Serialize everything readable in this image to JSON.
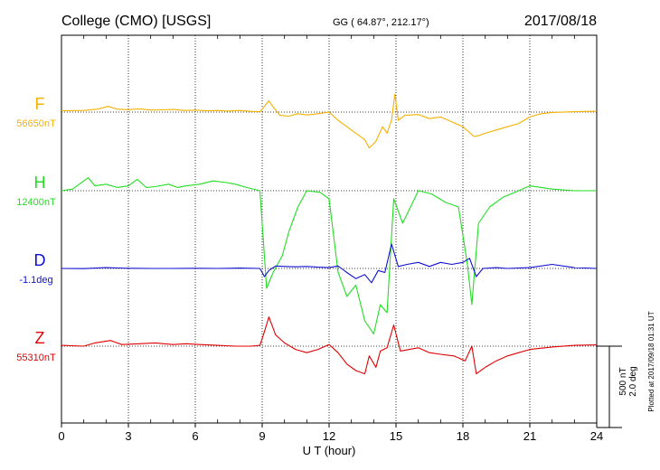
{
  "chart_data": {
    "type": "line",
    "title": "College (CMO)  [USGS]",
    "coords": "GG ( 64.87°, 212.17°)",
    "date": "2017/08/18",
    "xlabel": "U T (hour)",
    "xlim": [
      0,
      24
    ],
    "xticks": [
      0,
      3,
      6,
      9,
      12,
      15,
      18,
      21,
      24
    ],
    "tick_labels": [
      "0",
      "3",
      "6",
      "9",
      "12",
      "15",
      "18",
      "21",
      "24"
    ],
    "grid": true,
    "scale_note": "500 nT\n2.0 deg",
    "scale_nt": 500,
    "scale_deg": 2.0,
    "plotted_note": "Plotted at 2017/09/18 01:31 UT",
    "colors": {
      "F": "#f5b000",
      "H": "#22dd22",
      "D": "#1010d0",
      "Z": "#e00000"
    },
    "series": [
      {
        "name": "F",
        "baseline_label": "56650nT",
        "unit": "nT",
        "baseline": 56650,
        "points": [
          [
            0,
            56658
          ],
          [
            1,
            56660
          ],
          [
            1.6,
            56668
          ],
          [
            2.1,
            56685
          ],
          [
            2.5,
            56668
          ],
          [
            3,
            56665
          ],
          [
            3.5,
            56670
          ],
          [
            4,
            56662
          ],
          [
            4.5,
            56664
          ],
          [
            5,
            56666
          ],
          [
            5.5,
            56660
          ],
          [
            6,
            56662
          ],
          [
            6.5,
            56658
          ],
          [
            7,
            56660
          ],
          [
            7.5,
            56656
          ],
          [
            8,
            56660
          ],
          [
            8.5,
            56654
          ],
          [
            8.9,
            56652
          ],
          [
            9.1,
            56685
          ],
          [
            9.3,
            56720
          ],
          [
            9.5,
            56680
          ],
          [
            9.8,
            56630
          ],
          [
            10.2,
            56625
          ],
          [
            10.6,
            56640
          ],
          [
            11,
            56632
          ],
          [
            11.5,
            56640
          ],
          [
            12,
            56650
          ],
          [
            12.4,
            56600
          ],
          [
            12.8,
            56560
          ],
          [
            13.2,
            56520
          ],
          [
            13.6,
            56480
          ],
          [
            13.8,
            56430
          ],
          [
            14.1,
            56470
          ],
          [
            14.4,
            56560
          ],
          [
            14.6,
            56520
          ],
          [
            14.8,
            56600
          ],
          [
            14.95,
            56760
          ],
          [
            15.1,
            56600
          ],
          [
            15.4,
            56630
          ],
          [
            16,
            56635
          ],
          [
            16.5,
            56610
          ],
          [
            17,
            56620
          ],
          [
            17.5,
            56590
          ],
          [
            18,
            56560
          ],
          [
            18.5,
            56500
          ],
          [
            18.7,
            56505
          ],
          [
            19,
            56520
          ],
          [
            19.5,
            56540
          ],
          [
            20,
            56560
          ],
          [
            20.5,
            56580
          ],
          [
            21,
            56620
          ],
          [
            21.5,
            56640
          ],
          [
            22,
            56648
          ],
          [
            23,
            56652
          ],
          [
            24,
            56655
          ]
        ]
      },
      {
        "name": "H",
        "baseline_label": "12400nT",
        "unit": "nT",
        "baseline": 12400,
        "points": [
          [
            0,
            12400
          ],
          [
            0.5,
            12410
          ],
          [
            1.2,
            12480
          ],
          [
            1.5,
            12430
          ],
          [
            2,
            12440
          ],
          [
            2.5,
            12420
          ],
          [
            3,
            12430
          ],
          [
            3.4,
            12470
          ],
          [
            3.8,
            12420
          ],
          [
            4.2,
            12425
          ],
          [
            4.8,
            12440
          ],
          [
            5.2,
            12420
          ],
          [
            5.6,
            12430
          ],
          [
            6.2,
            12440
          ],
          [
            6.8,
            12460
          ],
          [
            7.4,
            12450
          ],
          [
            7.8,
            12440
          ],
          [
            8.3,
            12420
          ],
          [
            8.9,
            12400
          ],
          [
            9.05,
            12100
          ],
          [
            9.2,
            11800
          ],
          [
            9.5,
            11900
          ],
          [
            9.9,
            12000
          ],
          [
            10.2,
            12150
          ],
          [
            10.6,
            12300
          ],
          [
            11,
            12400
          ],
          [
            11.6,
            12390
          ],
          [
            12,
            12350
          ],
          [
            12.4,
            11900
          ],
          [
            12.8,
            11750
          ],
          [
            13.2,
            11820
          ],
          [
            13.6,
            11600
          ],
          [
            14,
            11520
          ],
          [
            14.3,
            11700
          ],
          [
            14.6,
            11650
          ],
          [
            14.9,
            12350
          ],
          [
            15.3,
            12200
          ],
          [
            16,
            12400
          ],
          [
            16.6,
            12380
          ],
          [
            17.2,
            12330
          ],
          [
            17.8,
            12300
          ],
          [
            18.2,
            11950
          ],
          [
            18.4,
            11700
          ],
          [
            18.7,
            12200
          ],
          [
            19.2,
            12300
          ],
          [
            19.8,
            12360
          ],
          [
            20.5,
            12400
          ],
          [
            21,
            12430
          ],
          [
            22,
            12410
          ],
          [
            23,
            12400
          ],
          [
            24,
            12400
          ]
        ]
      },
      {
        "name": "D",
        "baseline_label": "-1.1deg",
        "unit": "deg",
        "baseline": -1.1,
        "points": [
          [
            0,
            -1.1
          ],
          [
            1,
            -1.105
          ],
          [
            2,
            -1.08
          ],
          [
            3,
            -1.095
          ],
          [
            4,
            -1.1
          ],
          [
            5,
            -1.1
          ],
          [
            6,
            -1.095
          ],
          [
            7,
            -1.1
          ],
          [
            8,
            -1.09
          ],
          [
            8.9,
            -1.1
          ],
          [
            9.1,
            -1.3
          ],
          [
            9.3,
            -1.15
          ],
          [
            9.6,
            -1.04
          ],
          [
            10,
            -1.05
          ],
          [
            10.5,
            -1.06
          ],
          [
            11,
            -1.05
          ],
          [
            11.5,
            -1.07
          ],
          [
            12,
            -1.08
          ],
          [
            12.4,
            -1.04
          ],
          [
            12.8,
            -1.2
          ],
          [
            13.2,
            -1.35
          ],
          [
            13.6,
            -1.25
          ],
          [
            13.9,
            -1.45
          ],
          [
            14.2,
            -1.15
          ],
          [
            14.5,
            -1.2
          ],
          [
            14.8,
            -0.5
          ],
          [
            15.1,
            -1.05
          ],
          [
            15.5,
            -1.0
          ],
          [
            16,
            -0.95
          ],
          [
            16.5,
            -1.05
          ],
          [
            17,
            -0.95
          ],
          [
            17.5,
            -1.0
          ],
          [
            18,
            -0.95
          ],
          [
            18.3,
            -0.85
          ],
          [
            18.6,
            -1.3
          ],
          [
            18.9,
            -1.1
          ],
          [
            19.5,
            -1.08
          ],
          [
            20,
            -1.1
          ],
          [
            21,
            -1.08
          ],
          [
            22,
            -1.0
          ],
          [
            23,
            -1.08
          ],
          [
            24,
            -1.1
          ]
        ]
      },
      {
        "name": "Z",
        "baseline_label": "55310nT",
        "unit": "nT",
        "baseline": 55310,
        "points": [
          [
            0,
            55315
          ],
          [
            1,
            55310
          ],
          [
            1.5,
            55330
          ],
          [
            2.2,
            55345
          ],
          [
            2.7,
            55320
          ],
          [
            3.5,
            55325
          ],
          [
            4.2,
            55330
          ],
          [
            5,
            55320
          ],
          [
            5.6,
            55325
          ],
          [
            6.2,
            55320
          ],
          [
            7,
            55315
          ],
          [
            7.8,
            55310
          ],
          [
            8.5,
            55310
          ],
          [
            8.9,
            55315
          ],
          [
            9.1,
            55400
          ],
          [
            9.3,
            55490
          ],
          [
            9.6,
            55380
          ],
          [
            10,
            55330
          ],
          [
            10.5,
            55290
          ],
          [
            11,
            55270
          ],
          [
            11.5,
            55290
          ],
          [
            12,
            55320
          ],
          [
            12.4,
            55270
          ],
          [
            12.8,
            55200
          ],
          [
            13.2,
            55160
          ],
          [
            13.6,
            55140
          ],
          [
            13.8,
            55250
          ],
          [
            14.1,
            55180
          ],
          [
            14.3,
            55280
          ],
          [
            14.6,
            55300
          ],
          [
            14.9,
            55440
          ],
          [
            15.2,
            55280
          ],
          [
            15.6,
            55290
          ],
          [
            16,
            55300
          ],
          [
            16.5,
            55270
          ],
          [
            17,
            55260
          ],
          [
            17.6,
            55250
          ],
          [
            18.1,
            55220
          ],
          [
            18.4,
            55310
          ],
          [
            18.6,
            55140
          ],
          [
            19,
            55180
          ],
          [
            19.5,
            55220
          ],
          [
            20,
            55250
          ],
          [
            20.5,
            55270
          ],
          [
            21,
            55290
          ],
          [
            22,
            55305
          ],
          [
            23,
            55315
          ],
          [
            24,
            55318
          ]
        ]
      }
    ]
  }
}
